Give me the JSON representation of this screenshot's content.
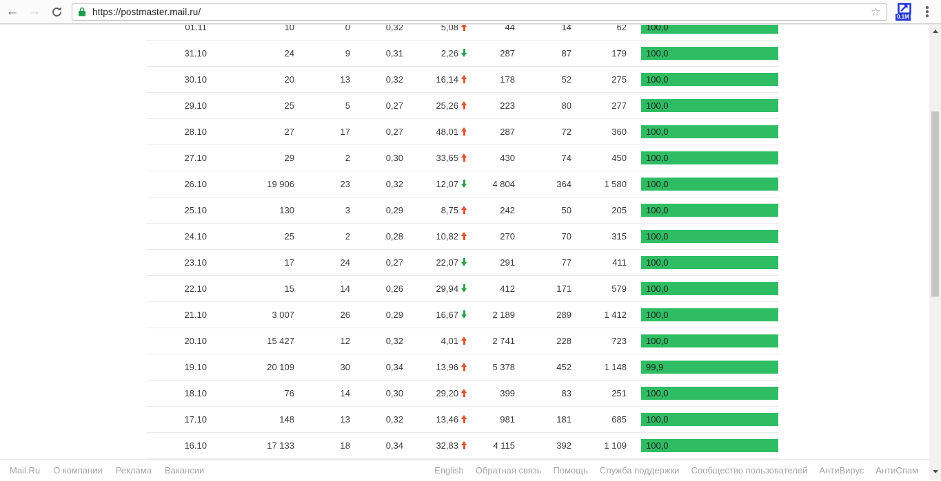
{
  "browser": {
    "url": "https://postmaster.mail.ru/",
    "extension_badge": "0.1M"
  },
  "table": {
    "rows": [
      {
        "date": "01.11",
        "c2": "10",
        "c3": "0",
        "c4": "0,32",
        "c5": "5,08",
        "trend": "up",
        "c6": "44",
        "c7": "14",
        "c8": "62",
        "bar": "100,0"
      },
      {
        "date": "31.10",
        "c2": "24",
        "c3": "9",
        "c4": "0,31",
        "c5": "2,26",
        "trend": "down",
        "c6": "287",
        "c7": "87",
        "c8": "179",
        "bar": "100,0"
      },
      {
        "date": "30.10",
        "c2": "20",
        "c3": "13",
        "c4": "0,32",
        "c5": "16,14",
        "trend": "up",
        "c6": "178",
        "c7": "52",
        "c8": "275",
        "bar": "100,0"
      },
      {
        "date": "29.10",
        "c2": "25",
        "c3": "5",
        "c4": "0,27",
        "c5": "25,26",
        "trend": "up",
        "c6": "223",
        "c7": "80",
        "c8": "277",
        "bar": "100,0"
      },
      {
        "date": "28.10",
        "c2": "27",
        "c3": "17",
        "c4": "0,27",
        "c5": "48,01",
        "trend": "up",
        "c6": "287",
        "c7": "72",
        "c8": "360",
        "bar": "100,0"
      },
      {
        "date": "27.10",
        "c2": "29",
        "c3": "2",
        "c4": "0,30",
        "c5": "33,65",
        "trend": "up",
        "c6": "430",
        "c7": "74",
        "c8": "450",
        "bar": "100,0"
      },
      {
        "date": "26.10",
        "c2": "19 906",
        "c3": "23",
        "c4": "0,32",
        "c5": "12,07",
        "trend": "down",
        "c6": "4 804",
        "c7": "364",
        "c8": "1 580",
        "bar": "100,0"
      },
      {
        "date": "25.10",
        "c2": "130",
        "c3": "3",
        "c4": "0,29",
        "c5": "8,75",
        "trend": "up",
        "c6": "242",
        "c7": "50",
        "c8": "205",
        "bar": "100,0"
      },
      {
        "date": "24.10",
        "c2": "25",
        "c3": "2",
        "c4": "0,28",
        "c5": "10,82",
        "trend": "up",
        "c6": "270",
        "c7": "70",
        "c8": "315",
        "bar": "100,0"
      },
      {
        "date": "23.10",
        "c2": "17",
        "c3": "24",
        "c4": "0,27",
        "c5": "22,07",
        "trend": "down",
        "c6": "291",
        "c7": "77",
        "c8": "411",
        "bar": "100,0"
      },
      {
        "date": "22.10",
        "c2": "15",
        "c3": "14",
        "c4": "0,26",
        "c5": "29,94",
        "trend": "down",
        "c6": "412",
        "c7": "171",
        "c8": "579",
        "bar": "100,0"
      },
      {
        "date": "21.10",
        "c2": "3 007",
        "c3": "26",
        "c4": "0,29",
        "c5": "16,67",
        "trend": "down",
        "c6": "2 189",
        "c7": "289",
        "c8": "1 412",
        "bar": "100,0"
      },
      {
        "date": "20.10",
        "c2": "15 427",
        "c3": "12",
        "c4": "0,32",
        "c5": "4,01",
        "trend": "up",
        "c6": "2 741",
        "c7": "228",
        "c8": "723",
        "bar": "100,0"
      },
      {
        "date": "19.10",
        "c2": "20 109",
        "c3": "30",
        "c4": "0,34",
        "c5": "13,96",
        "trend": "up",
        "c6": "5 378",
        "c7": "452",
        "c8": "1 148",
        "bar": "99,9"
      },
      {
        "date": "18.10",
        "c2": "76",
        "c3": "14",
        "c4": "0,30",
        "c5": "29,20",
        "trend": "up",
        "c6": "399",
        "c7": "83",
        "c8": "251",
        "bar": "100,0"
      },
      {
        "date": "17.10",
        "c2": "148",
        "c3": "13",
        "c4": "0,32",
        "c5": "13,46",
        "trend": "up",
        "c6": "981",
        "c7": "181",
        "c8": "685",
        "bar": "100,0"
      },
      {
        "date": "16.10",
        "c2": "17 133",
        "c3": "18",
        "c4": "0,34",
        "c5": "32,83",
        "trend": "up",
        "c6": "4 115",
        "c7": "392",
        "c8": "1 109",
        "bar": "100,0"
      }
    ]
  },
  "footer": {
    "left": [
      "Mail.Ru",
      "О компании",
      "Реклама",
      "Вакансии"
    ],
    "right": [
      "English",
      "Обратная связь",
      "Помощь",
      "Служба поддержки",
      "Сообщество пользователей",
      "АнтиВирус",
      "АнтиСпам"
    ]
  },
  "colors": {
    "bar_green": "#2fbd63",
    "arrow_up_red": "#e2512a",
    "arrow_down_green": "#28a24c",
    "lock_green": "#1d9c49",
    "extension_blue": "#2438d2"
  }
}
